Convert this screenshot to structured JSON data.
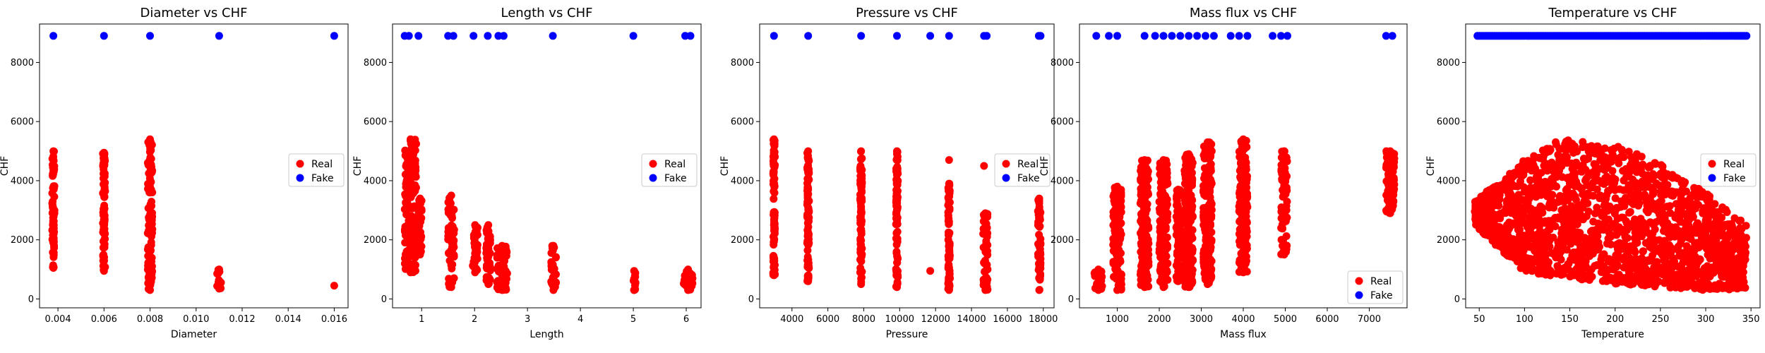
{
  "colors": {
    "real": "#ff0000",
    "fake": "#0000ff"
  },
  "chart_data": [
    {
      "type": "scatter",
      "title": "Diameter vs CHF",
      "xlabel": "Diameter",
      "ylabel": "CHF",
      "xlim": [
        0.0032,
        0.0166
      ],
      "ylim": [
        -300,
        9300
      ],
      "xticks": [
        0.004,
        0.006,
        0.008,
        0.01,
        0.012,
        0.014,
        0.016
      ],
      "xtick_labels": [
        "0.004",
        "0.006",
        "0.008",
        "0.010",
        "0.012",
        "0.014",
        "0.016"
      ],
      "yticks": [
        0,
        2000,
        4000,
        6000,
        8000
      ],
      "ytick_labels": [
        "0",
        "2000",
        "4000",
        "6000",
        "8000"
      ],
      "legend": {
        "position": "center-right",
        "entries": [
          "Real",
          "Fake"
        ]
      },
      "grid": false,
      "series": [
        {
          "name": "Real",
          "color": "#ff0000",
          "bands": [
            {
              "x": [
                0.00375,
                0.00385
              ],
              "y": [
                1050,
                5000
              ]
            },
            {
              "x": [
                0.00595,
                0.00605
              ],
              "y": [
                950,
                4950
              ]
            },
            {
              "x": [
                0.0079,
                0.0081
              ],
              "y": [
                300,
                5400
              ]
            },
            {
              "x": [
                0.0109,
                0.0111
              ],
              "y": [
                350,
                1000
              ]
            }
          ],
          "points": [
            [
              0.016,
              450
            ]
          ]
        },
        {
          "name": "Fake",
          "color": "#0000ff",
          "points": [
            [
              0.0038,
              8900
            ],
            [
              0.006,
              8900
            ],
            [
              0.008,
              8900
            ],
            [
              0.011,
              8900
            ],
            [
              0.016,
              8900
            ]
          ]
        }
      ]
    },
    {
      "type": "scatter",
      "title": "Length vs CHF",
      "xlabel": "Length",
      "ylabel": "CHF",
      "xlim": [
        0.45,
        6.28
      ],
      "ylim": [
        -300,
        9300
      ],
      "xticks": [
        1,
        2,
        3,
        4,
        5,
        6
      ],
      "xtick_labels": [
        "1",
        "2",
        "3",
        "4",
        "5",
        "6"
      ],
      "yticks": [
        0,
        2000,
        4000,
        6000,
        8000
      ],
      "ytick_labels": [
        "0",
        "2000",
        "4000",
        "6000",
        "8000"
      ],
      "legend": {
        "position": "center-right",
        "entries": [
          "Real",
          "Fake"
        ]
      },
      "grid": false,
      "series": [
        {
          "name": "Real",
          "color": "#ff0000",
          "bands": [
            {
              "x": [
                0.68,
                0.9
              ],
              "y": [
                900,
                5400
              ]
            },
            {
              "x": [
                0.94,
                1.0
              ],
              "y": [
                1500,
                3400
              ]
            },
            {
              "x": [
                1.5,
                1.62
              ],
              "y": [
                400,
                3500
              ]
            },
            {
              "x": [
                1.96,
                2.06
              ],
              "y": [
                900,
                2500
              ]
            },
            {
              "x": [
                2.22,
                2.3
              ],
              "y": [
                500,
                2500
              ]
            },
            {
              "x": [
                2.42,
                2.62
              ],
              "y": [
                300,
                1800
              ]
            },
            {
              "x": [
                3.44,
                3.54
              ],
              "y": [
                300,
                1800
              ]
            },
            {
              "x": [
                4.98,
                5.05
              ],
              "y": [
                300,
                950
              ]
            },
            {
              "x": [
                5.95,
                6.12
              ],
              "y": [
                300,
                1000
              ]
            }
          ]
        },
        {
          "name": "Fake",
          "color": "#0000ff",
          "points": [
            [
              0.68,
              8900
            ],
            [
              0.76,
              8900
            ],
            [
              0.94,
              8900
            ],
            [
              1.5,
              8900
            ],
            [
              1.6,
              8900
            ],
            [
              1.98,
              8900
            ],
            [
              2.25,
              8900
            ],
            [
              2.45,
              8900
            ],
            [
              2.55,
              8900
            ],
            [
              3.48,
              8900
            ],
            [
              5.0,
              8900
            ],
            [
              5.98,
              8900
            ],
            [
              6.08,
              8900
            ]
          ]
        }
      ]
    },
    {
      "type": "scatter",
      "title": "Pressure vs CHF",
      "xlabel": "Pressure",
      "ylabel": "CHF",
      "xlim": [
        2200,
        18600
      ],
      "ylim": [
        -300,
        9300
      ],
      "xticks": [
        4000,
        6000,
        8000,
        10000,
        12000,
        14000,
        16000,
        18000
      ],
      "xtick_labels": [
        "4000",
        "6000",
        "8000",
        "10000",
        "12000",
        "14000",
        "16000",
        "18000"
      ],
      "yticks": [
        0,
        2000,
        4000,
        6000,
        8000
      ],
      "ytick_labels": [
        "0",
        "2000",
        "4000",
        "6000",
        "8000"
      ],
      "legend": {
        "position": "center-right",
        "entries": [
          "Real",
          "Fake"
        ]
      },
      "grid": false,
      "series": [
        {
          "name": "Real",
          "color": "#ff0000",
          "bands": [
            {
              "x": [
                2950,
                3050
              ],
              "y": [
                800,
                5400
              ]
            },
            {
              "x": [
                4850,
                4950
              ],
              "y": [
                600,
                5000
              ]
            },
            {
              "x": [
                7800,
                7900
              ],
              "y": [
                500,
                5000
              ]
            },
            {
              "x": [
                9800,
                9900
              ],
              "y": [
                400,
                5000
              ]
            },
            {
              "x": [
                12700,
                12800
              ],
              "y": [
                300,
                3900
              ]
            },
            {
              "x": [
                14650,
                14900
              ],
              "y": [
                300,
                2900
              ]
            },
            {
              "x": [
                17700,
                17850
              ],
              "y": [
                300,
                3400
              ]
            }
          ],
          "points": [
            [
              11700,
              950
            ],
            [
              12750,
              4700
            ],
            [
              14700,
              4500
            ],
            [
              14900,
              1000
            ]
          ]
        },
        {
          "name": "Fake",
          "color": "#0000ff",
          "points": [
            [
              3000,
              8900
            ],
            [
              4900,
              8900
            ],
            [
              7850,
              8900
            ],
            [
              9850,
              8900
            ],
            [
              11700,
              8900
            ],
            [
              12750,
              8900
            ],
            [
              14700,
              8900
            ],
            [
              14850,
              8900
            ],
            [
              17750,
              8900
            ],
            [
              17850,
              8900
            ]
          ]
        }
      ]
    },
    {
      "type": "scatter",
      "title": "Mass flux vs CHF",
      "xlabel": "Mass flux",
      "ylabel": "CHF",
      "xlim": [
        100,
        7900
      ],
      "ylim": [
        -300,
        9300
      ],
      "xticks": [
        1000,
        2000,
        3000,
        4000,
        5000,
        6000,
        7000
      ],
      "xtick_labels": [
        "1000",
        "2000",
        "3000",
        "4000",
        "5000",
        "6000",
        "7000"
      ],
      "yticks": [
        0,
        2000,
        4000,
        6000,
        8000
      ],
      "ytick_labels": [
        "0",
        "2000",
        "4000",
        "6000",
        "8000"
      ],
      "legend": {
        "position": "bottom-right",
        "entries": [
          "Real",
          "Fake"
        ]
      },
      "grid": false,
      "series": [
        {
          "name": "Real",
          "color": "#ff0000",
          "bands": [
            {
              "x": [
                450,
                650
              ],
              "y": [
                300,
                1000
              ]
            },
            {
              "x": [
                900,
                1100
              ],
              "y": [
                300,
                3800
              ]
            },
            {
              "x": [
                1550,
                1750
              ],
              "y": [
                400,
                4700
              ]
            },
            {
              "x": [
                2000,
                2200
              ],
              "y": [
                400,
                4700
              ]
            },
            {
              "x": [
                2400,
                2500
              ],
              "y": [
                600,
                3700
              ]
            },
            {
              "x": [
                2600,
                2800
              ],
              "y": [
                400,
                4900
              ]
            },
            {
              "x": [
                3050,
                3250
              ],
              "y": [
                500,
                5300
              ]
            },
            {
              "x": [
                3900,
                4100
              ],
              "y": [
                900,
                5400
              ]
            },
            {
              "x": [
                4900,
                5050
              ],
              "y": [
                1500,
                5000
              ]
            },
            {
              "x": [
                7400,
                7600
              ],
              "y": [
                2900,
                5000
              ]
            }
          ]
        },
        {
          "name": "Fake",
          "color": "#0000ff",
          "points": [
            [
              500,
              8900
            ],
            [
              800,
              8900
            ],
            [
              1000,
              8900
            ],
            [
              1650,
              8900
            ],
            [
              1900,
              8900
            ],
            [
              2100,
              8900
            ],
            [
              2300,
              8900
            ],
            [
              2500,
              8900
            ],
            [
              2700,
              8900
            ],
            [
              2900,
              8900
            ],
            [
              3100,
              8900
            ],
            [
              3300,
              8900
            ],
            [
              3700,
              8900
            ],
            [
              3900,
              8900
            ],
            [
              4100,
              8900
            ],
            [
              4700,
              8900
            ],
            [
              4900,
              8900
            ],
            [
              5050,
              8900
            ],
            [
              7400,
              8900
            ],
            [
              7550,
              8900
            ]
          ]
        }
      ]
    },
    {
      "type": "scatter",
      "title": "Temperature vs CHF",
      "xlabel": "Temperature",
      "ylabel": "CHF",
      "xlim": [
        35,
        360
      ],
      "ylim": [
        -300,
        9300
      ],
      "xticks": [
        50,
        100,
        150,
        200,
        250,
        300,
        350
      ],
      "xtick_labels": [
        "50",
        "100",
        "150",
        "200",
        "250",
        "300",
        "350"
      ],
      "yticks": [
        0,
        2000,
        4000,
        6000,
        8000
      ],
      "ytick_labels": [
        "0",
        "2000",
        "4000",
        "6000",
        "8000"
      ],
      "legend": {
        "position": "center-right",
        "entries": [
          "Real",
          "Fake"
        ]
      },
      "grid": false,
      "series": [
        {
          "name": "Real",
          "color": "#ff0000",
          "cloud": {
            "x_range": [
              45,
              345
            ],
            "upper_envelope": [
              [
                45,
                3300
              ],
              [
                100,
                4700
              ],
              [
                140,
                5400
              ],
              [
                200,
                5200
              ],
              [
                250,
                4600
              ],
              [
                300,
                3600
              ],
              [
                345,
                2500
              ]
            ],
            "lower_envelope": [
              [
                45,
                2500
              ],
              [
                100,
                900
              ],
              [
                200,
                500
              ],
              [
                300,
                300
              ],
              [
                345,
                300
              ]
            ]
          }
        },
        {
          "name": "Fake",
          "color": "#0000ff",
          "band": {
            "x": [
              48,
              345
            ],
            "y": 8900
          }
        }
      ]
    }
  ]
}
